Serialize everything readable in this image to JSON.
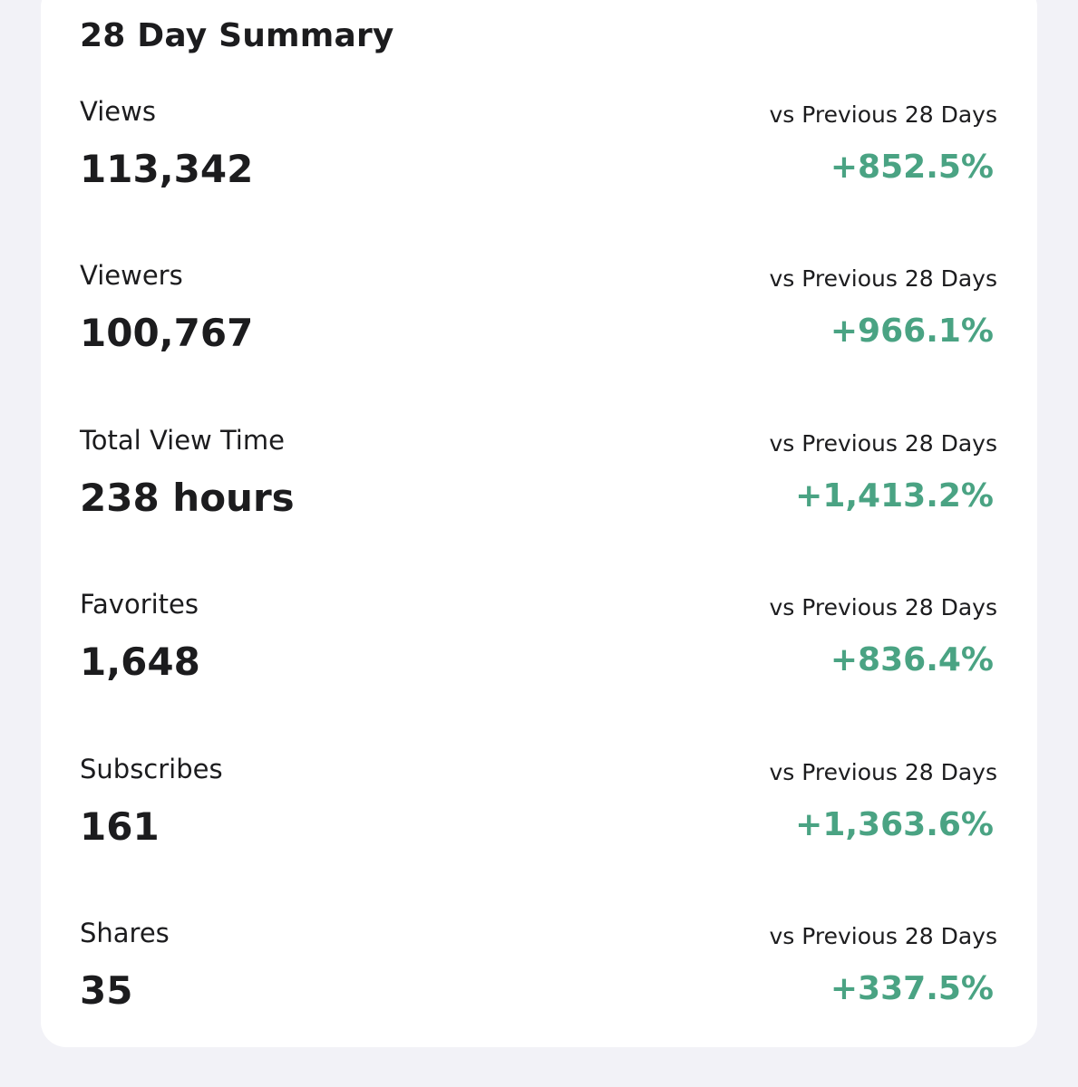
{
  "summary": {
    "title": "28 Day Summary"
  },
  "metrics": [
    {
      "label": "Views",
      "value": "113,342",
      "compare_label": "vs Previous 28 Days",
      "change": "+852.5%"
    },
    {
      "label": "Viewers",
      "value": "100,767",
      "compare_label": "vs Previous 28 Days",
      "change": "+966.1%"
    },
    {
      "label": "Total View Time",
      "value": "238 hours",
      "compare_label": "vs Previous 28 Days",
      "change": "+1,413.2%"
    },
    {
      "label": "Favorites",
      "value": "1,648",
      "compare_label": "vs Previous 28 Days",
      "change": "+836.4%"
    },
    {
      "label": "Subscribes",
      "value": "161",
      "compare_label": "vs Previous 28 Days",
      "change": "+1,363.6%"
    },
    {
      "label": "Shares",
      "value": "35",
      "compare_label": "vs Previous 28 Days",
      "change": "+337.5%"
    }
  ],
  "colors": {
    "positive_change": "#4aa383",
    "background": "#f2f2f7",
    "card": "#ffffff",
    "text": "#1c1c1e"
  }
}
